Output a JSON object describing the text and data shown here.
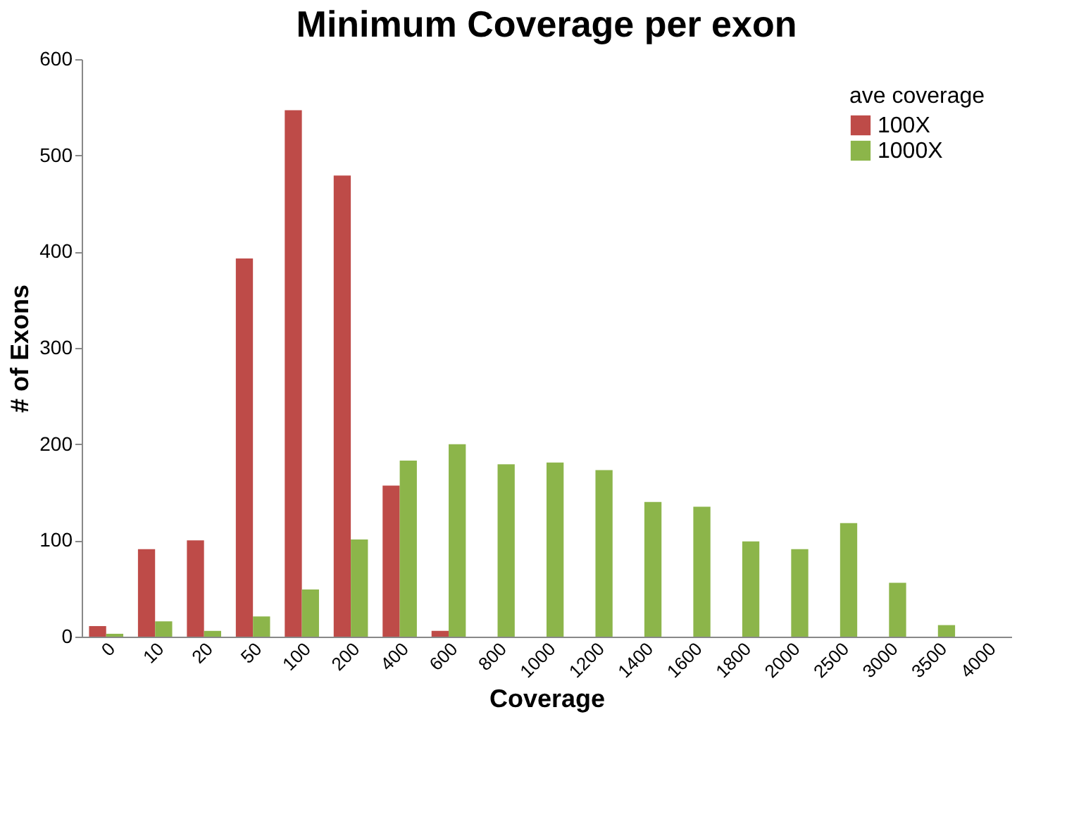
{
  "chart_data": {
    "type": "bar",
    "title": "Minimum Coverage per exon",
    "xlabel": "Coverage",
    "ylabel": "# of Exons",
    "legend_title": "ave coverage",
    "legend": "top right",
    "grid": false,
    "categories": [
      "0",
      "10",
      "20",
      "50",
      "100",
      "200",
      "400",
      "600",
      "800",
      "1000",
      "1200",
      "1400",
      "1600",
      "1800",
      "2000",
      "2500",
      "3000",
      "3500",
      "4000"
    ],
    "series": [
      {
        "name": "100X",
        "color": "#be4b48",
        "values": [
          11,
          91,
          100,
          393,
          547,
          479,
          157,
          6,
          0,
          0,
          0,
          0,
          0,
          0,
          0,
          0,
          0,
          0,
          0
        ]
      },
      {
        "name": "1000X",
        "color": "#8cb54a",
        "values": [
          3,
          16,
          6,
          21,
          49,
          101,
          183,
          200,
          179,
          181,
          173,
          140,
          135,
          99,
          91,
          118,
          56,
          12,
          0
        ]
      }
    ],
    "ylim": [
      0,
      600
    ],
    "yticks": [
      0,
      100,
      200,
      300,
      400,
      500,
      600
    ]
  }
}
